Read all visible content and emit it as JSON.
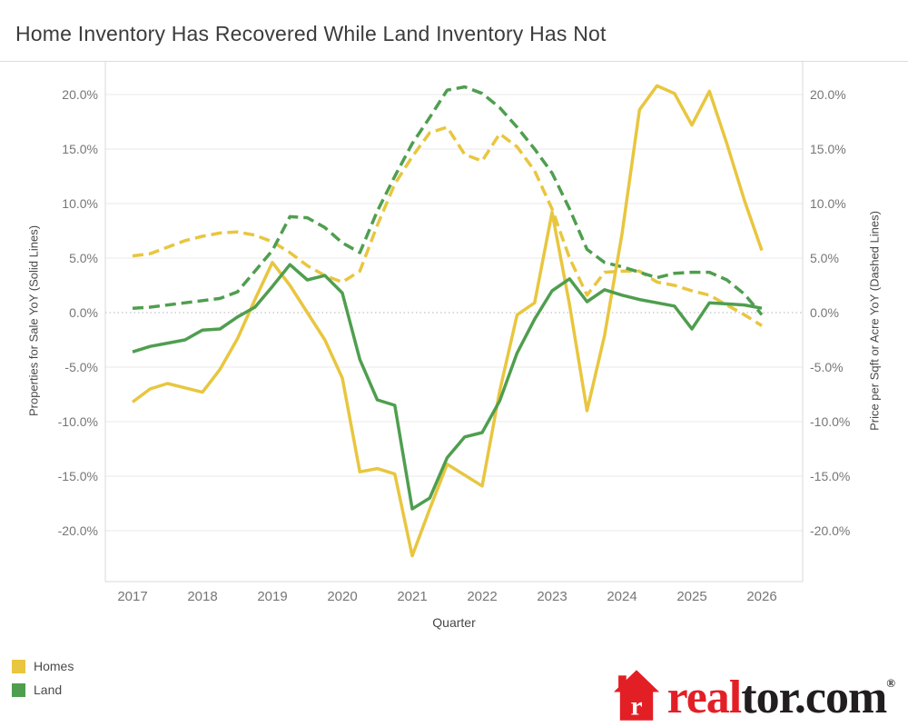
{
  "title": "Home Inventory Has Recovered While Land Inventory Has Not",
  "chart_data": {
    "type": "line",
    "title": "Home Inventory Has Recovered While Land Inventory Has Not",
    "xlabel": "Quarter",
    "x_tick_labels": [
      "2017",
      "2018",
      "2019",
      "2020",
      "2021",
      "2022",
      "2023",
      "2024",
      "2025",
      "2026"
    ],
    "x_frequency": "quarterly",
    "x_start": "2017 Q1",
    "x_end": "2026 Q1",
    "grid": "horizontal",
    "zero_line": "dotted",
    "left_axis": {
      "label": "Properties for Sale YoY (Solid Lines)",
      "tick_labels": [
        "20.0%",
        "15.0%",
        "10.0%",
        "5.0%",
        "0.0%",
        "-5.0%",
        "-10.0%",
        "-15.0%",
        "-20.0%"
      ],
      "tick_values": [
        20,
        15,
        10,
        5,
        0,
        -5,
        -10,
        -15,
        -20
      ]
    },
    "right_axis": {
      "label": "Price per Sqft or Acre YoY (Dashed Lines)",
      "tick_labels": [
        "20.0%",
        "15.0%",
        "10.0%",
        "5.0%",
        "0.0%",
        "-5.0%",
        "-10.0%",
        "-15.0%",
        "-20.0%"
      ],
      "tick_values": [
        20,
        15,
        10,
        5,
        0,
        -5,
        -10,
        -15,
        -20
      ]
    },
    "series": [
      {
        "id": "homes-price",
        "name": "Homes price per sqft YoY",
        "legend": "Homes",
        "axis": "right",
        "line": "dashed",
        "color": "#E8C63F",
        "values": [
          5.2,
          5.4,
          6.0,
          6.6,
          7.0,
          7.3,
          7.4,
          7.1,
          6.5,
          5.5,
          4.3,
          3.4,
          2.8,
          3.8,
          8.0,
          11.8,
          14.3,
          16.5,
          17.0,
          14.5,
          13.9,
          16.4,
          15.2,
          13.0,
          9.5,
          5.0,
          1.6,
          3.7,
          3.8,
          3.8,
          2.8,
          2.5,
          2.0,
          1.6,
          0.7,
          -0.2,
          -1.2
        ]
      },
      {
        "id": "land-price",
        "name": "Land price per acre YoY",
        "legend": "Land",
        "axis": "right",
        "line": "dashed",
        "color": "#4F9E4F",
        "values": [
          0.4,
          0.5,
          0.7,
          0.9,
          1.1,
          1.3,
          1.9,
          3.8,
          5.7,
          8.8,
          8.7,
          7.8,
          6.4,
          5.5,
          9.3,
          12.5,
          15.5,
          17.9,
          20.4,
          20.7,
          20.1,
          18.8,
          17.0,
          15.0,
          12.8,
          9.5,
          5.8,
          4.6,
          4.2,
          3.7,
          3.2,
          3.6,
          3.7,
          3.7,
          3.0,
          1.7,
          -0.2
        ]
      },
      {
        "id": "homes-inventory",
        "name": "Homes properties for sale YoY",
        "legend": "Homes",
        "axis": "left",
        "line": "solid",
        "color": "#E8C63F",
        "values": [
          -8.2,
          -7.0,
          -6.5,
          -6.9,
          -7.3,
          -5.2,
          -2.4,
          1.2,
          4.6,
          2.5,
          0.0,
          -2.5,
          -6.0,
          -14.6,
          -14.3,
          -14.8,
          -22.3,
          -18.0,
          -13.9,
          -14.9,
          -15.9,
          -7.2,
          -0.2,
          0.9,
          9.2,
          0.7,
          -9.0,
          -2.1,
          7.2,
          18.6,
          20.8,
          20.1,
          17.2,
          20.3,
          15.5,
          10.3,
          5.7
        ]
      },
      {
        "id": "land-inventory",
        "name": "Land properties for sale YoY",
        "legend": "Land",
        "axis": "left",
        "line": "solid",
        "color": "#4F9E4F",
        "values": [
          -3.6,
          -3.1,
          -2.8,
          -2.5,
          -1.6,
          -1.5,
          -0.4,
          0.5,
          2.4,
          4.4,
          3.0,
          3.4,
          1.8,
          -4.3,
          -8.0,
          -8.5,
          -18.0,
          -17.0,
          -13.3,
          -11.4,
          -11.0,
          -8.1,
          -3.7,
          -0.6,
          2.0,
          3.1,
          1.0,
          2.1,
          1.6,
          1.2,
          0.9,
          0.6,
          -1.5,
          0.9,
          0.8,
          0.7,
          0.4
        ]
      }
    ]
  },
  "legend": {
    "items": [
      {
        "label": "Homes",
        "color": "#E8C63F"
      },
      {
        "label": "Land",
        "color": "#4F9E4F"
      }
    ]
  },
  "branding": {
    "logo_red_text": "real",
    "logo_black_text": "tor.com",
    "registered_mark": "®",
    "house_letter": "r",
    "red": "#E31F26",
    "black": "#221E1F"
  },
  "colors": {
    "homes": "#E8C63F",
    "land": "#4F9E4F",
    "gridline": "#e9e9e9",
    "frame": "#d9d9d9",
    "zero_line": "#b5b5b5",
    "tick_text": "#767676",
    "axis_title_text": "#474747",
    "title_text": "#3c3c3c"
  }
}
